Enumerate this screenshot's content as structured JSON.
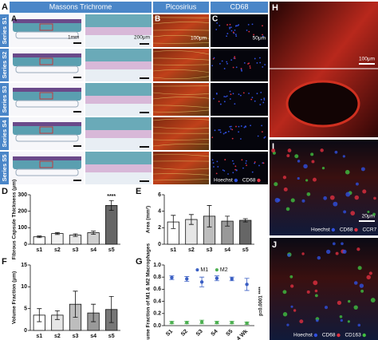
{
  "panels": {
    "A": {
      "letter": "A",
      "title": "Massons Trichrome",
      "rows": [
        "Series S1",
        "Series S2",
        "Series S3",
        "Series S4",
        "Series S5"
      ],
      "scale_bars": [
        "1mm",
        "200μm"
      ]
    },
    "B": {
      "letter": "B",
      "title": "Picosirius",
      "scale_bar": "100μm"
    },
    "C": {
      "letter": "C",
      "title": "CD68",
      "scale_bar": "50μm",
      "legend": [
        "Hoechst",
        "CD68"
      ]
    },
    "H": {
      "letter": "H",
      "scale_bar": "100μm"
    },
    "I": {
      "letter": "I",
      "scale_bar": "20μm",
      "legend": [
        "Hoechst",
        "CD68",
        "CCR7"
      ]
    },
    "J": {
      "letter": "J",
      "legend": [
        "Hoechst",
        "CD68",
        "CD163"
      ]
    }
  },
  "chart_data": [
    {
      "type": "bar",
      "letter": "D",
      "y_label": "Fibrous Capsule Thickness (μm)",
      "categories": [
        "s1",
        "s2",
        "s3",
        "s4",
        "s5"
      ],
      "values": [
        45,
        65,
        55,
        70,
        235
      ],
      "errors": [
        5,
        6,
        8,
        10,
        30
      ],
      "colors": [
        "#ffffff",
        "#f2f2f2",
        "#e6e6e6",
        "#d0d0d0",
        "#666666"
      ],
      "ylim": [
        0,
        300
      ],
      "yticks": [
        0,
        100,
        200,
        300
      ],
      "annotation": "****"
    },
    {
      "type": "bar",
      "letter": "E",
      "y_label": "Area (mm²)",
      "categories": [
        "s1",
        "s2",
        "s3",
        "s4",
        "s5"
      ],
      "values": [
        2.7,
        3.0,
        3.4,
        2.8,
        2.9
      ],
      "errors": [
        0.8,
        0.6,
        1.3,
        0.6,
        0.2
      ],
      "colors": [
        "#ffffff",
        "#e6e6e6",
        "#bdbdbd",
        "#999999",
        "#666666"
      ],
      "ylim": [
        0,
        6
      ],
      "yticks": [
        0,
        2,
        4,
        6
      ]
    },
    {
      "type": "bar",
      "letter": "F",
      "y_label": "Volume Fraction (μm)",
      "categories": [
        "s1",
        "s2",
        "s3",
        "s4",
        "s5"
      ],
      "values": [
        3.5,
        3.5,
        6,
        4,
        4.8
      ],
      "errors": [
        1.5,
        1.0,
        3.0,
        2.0,
        3.0
      ],
      "colors": [
        "#ffffff",
        "#e6e6e6",
        "#bdbdbd",
        "#999999",
        "#777777"
      ],
      "ylim": [
        0,
        15
      ],
      "yticks": [
        0,
        5,
        10,
        15
      ]
    },
    {
      "type": "strip",
      "letter": "G",
      "y_label": "Volume Fraction of M1 & M2 Macrophages",
      "categories": [
        "S1",
        "S2",
        "S3",
        "S4",
        "S5",
        "S4 - 4 Wk"
      ],
      "series": [
        {
          "name": "M1",
          "color": "#3a5fc4",
          "values": [
            0.79,
            0.77,
            0.72,
            0.78,
            0.77,
            0.68
          ],
          "errors": [
            0.03,
            0.04,
            0.08,
            0.04,
            0.03,
            0.1
          ]
        },
        {
          "name": "M2",
          "color": "#4caf50",
          "values": [
            0.05,
            0.05,
            0.06,
            0.05,
            0.05,
            0.04
          ],
          "errors": [
            0.02,
            0.02,
            0.03,
            0.02,
            0.02,
            0.02
          ]
        }
      ],
      "ylim": [
        0,
        1
      ],
      "yticks": [
        {
          "value": 0,
          "label": "0.0"
        },
        {
          "value": 0.2,
          "label": "0.2"
        },
        {
          "value": 0.4,
          "label": "0.4"
        },
        {
          "value": 0.6,
          "label": "0.6"
        },
        {
          "value": 0.8,
          "label": "0.8"
        },
        {
          "value": 1,
          "label": "1.0"
        }
      ],
      "annotation": "p=0.0001 ****"
    }
  ]
}
